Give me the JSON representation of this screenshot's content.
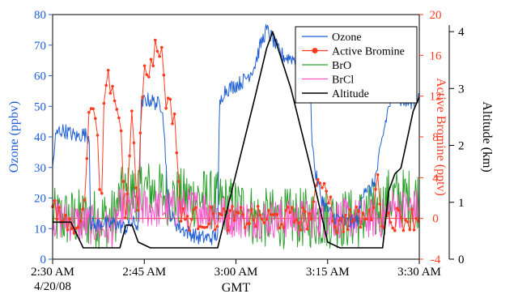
{
  "chart_data": {
    "type": "line",
    "xlabel": "GMT",
    "x_ticks": [
      "2:30 AM",
      "2:45 AM",
      "3:00 AM",
      "3:15 AM",
      "3:30 AM"
    ],
    "date_label": "4/20/08",
    "xlim_minutes": [
      0,
      60
    ],
    "axes": {
      "left": {
        "label": "Ozone (ppbv)",
        "color": "#1f5fd6",
        "lim": [
          0,
          80
        ],
        "ticks": [
          0,
          10,
          20,
          30,
          40,
          50,
          60,
          70,
          80
        ]
      },
      "right": {
        "label": "Active Bromine (pptv)",
        "color": "#ff3b1f",
        "lim": [
          -4,
          20
        ],
        "ticks": [
          -4,
          0,
          4,
          8,
          12,
          16,
          20
        ]
      },
      "far_right": {
        "label": "Altitude (km)",
        "color": "#000000",
        "lim": [
          0,
          4.3
        ],
        "ticks": [
          0,
          1,
          2,
          3,
          4
        ]
      }
    },
    "legend_position": "top-right",
    "series": [
      {
        "name": "Ozone",
        "axis": "left",
        "color": "#1f5fd6",
        "noise": 2.5,
        "x": [
          0,
          0.5,
          1,
          2,
          3,
          4,
          5,
          6,
          6.2,
          7,
          8,
          8.5,
          9,
          10,
          11,
          12,
          13,
          14,
          14.5,
          15,
          16,
          17,
          18,
          19,
          20,
          21,
          22,
          23,
          24,
          25,
          26,
          27,
          27.3,
          28,
          29,
          30,
          31,
          32,
          33,
          34,
          35,
          36,
          37,
          38,
          39,
          40,
          41,
          42,
          42.5,
          43,
          44,
          45,
          46,
          47,
          48,
          49,
          50,
          51,
          52,
          53,
          54,
          55,
          56,
          57,
          58,
          59,
          60
        ],
        "y": [
          30,
          40,
          42,
          42,
          41,
          40,
          41,
          40,
          12,
          11,
          12,
          12,
          11,
          12,
          11,
          10,
          12,
          11,
          50,
          52,
          52,
          51,
          50,
          16,
          12,
          10,
          9,
          8,
          7,
          7,
          7,
          8,
          50,
          55,
          56,
          57,
          58,
          60,
          63,
          70,
          75,
          72,
          68,
          66,
          66,
          65,
          65,
          64,
          38,
          28,
          20,
          16,
          14,
          13,
          12,
          12,
          13,
          24,
          22,
          28,
          40,
          50,
          55,
          52,
          51,
          52,
          53
        ]
      },
      {
        "name": "Active Bromine",
        "axis": "right",
        "color": "#ff3b1f",
        "marker": "circle",
        "noise": 1.2,
        "x": [
          0,
          1,
          2,
          3,
          4,
          5,
          6,
          6.5,
          7,
          8,
          8.5,
          9,
          10,
          11,
          12,
          13,
          13.5,
          14,
          14.5,
          15,
          16,
          17,
          18,
          18.5,
          19,
          20,
          21,
          22,
          23,
          24,
          25,
          26,
          27,
          28,
          29,
          30,
          31,
          32,
          33,
          34,
          35,
          36,
          37,
          38,
          39,
          40,
          41,
          42,
          43,
          44,
          45,
          46,
          47,
          48,
          49,
          50,
          51,
          52,
          53,
          54,
          55,
          56,
          57,
          58,
          59,
          60
        ],
        "y": [
          1,
          0,
          0,
          -1,
          0,
          0,
          10,
          12,
          11,
          0,
          13,
          14,
          12,
          10,
          0,
          12,
          3,
          1,
          12,
          14,
          15,
          17,
          16,
          12,
          11,
          10,
          0,
          0,
          0,
          0,
          0,
          0,
          0,
          0,
          0,
          0,
          0,
          0,
          0,
          0,
          0,
          0,
          0,
          0,
          0,
          0,
          0,
          0,
          2,
          4,
          3,
          0,
          -1,
          0,
          0,
          0,
          0,
          0,
          4,
          0,
          0,
          0,
          0,
          0,
          0,
          0
        ]
      },
      {
        "name": "BrO",
        "axis": "right",
        "color": "#2ca02c",
        "noise": 3.0,
        "x": [
          0,
          10,
          11,
          15,
          20,
          25,
          30,
          32,
          33,
          35,
          40,
          45,
          46,
          50,
          54,
          55,
          60
        ],
        "y": [
          0,
          0,
          2,
          3,
          2,
          2,
          1,
          1,
          0,
          0,
          0,
          0,
          0,
          0,
          1,
          2,
          2
        ]
      },
      {
        "name": "BrCl",
        "axis": "right",
        "color": "#ff55cc",
        "noise": 2.0,
        "x": [
          0,
          10,
          11,
          15,
          20,
          25,
          30,
          32,
          33,
          35,
          40,
          45,
          46,
          50,
          54,
          55,
          60
        ],
        "y": [
          0,
          -1,
          1,
          1,
          1,
          1,
          0,
          0,
          0,
          0,
          0,
          0,
          0,
          0,
          0,
          1,
          1
        ]
      },
      {
        "name": "Altitude",
        "axis": "far_right",
        "color": "#000000",
        "x": [
          0,
          2,
          3,
          5,
          6,
          8,
          9,
          11,
          12,
          13,
          14,
          16,
          18,
          20,
          25,
          27,
          30,
          33,
          35,
          36,
          39,
          42,
          45,
          47,
          52,
          54,
          55,
          56,
          57,
          58,
          59,
          60
        ],
        "y": [
          0.65,
          0.65,
          0.65,
          0.2,
          0.2,
          0.2,
          0.2,
          0.2,
          0.6,
          0.6,
          0.3,
          0.2,
          0.2,
          0.2,
          0.2,
          0.2,
          1.5,
          2.8,
          3.7,
          4.0,
          3.0,
          1.7,
          0.3,
          0.2,
          0.2,
          0.2,
          1.2,
          1.5,
          1.6,
          2.1,
          2.6,
          2.85
        ]
      }
    ],
    "reference_line": {
      "axis": "right",
      "value": 0,
      "color": "#ff3b1f"
    }
  }
}
